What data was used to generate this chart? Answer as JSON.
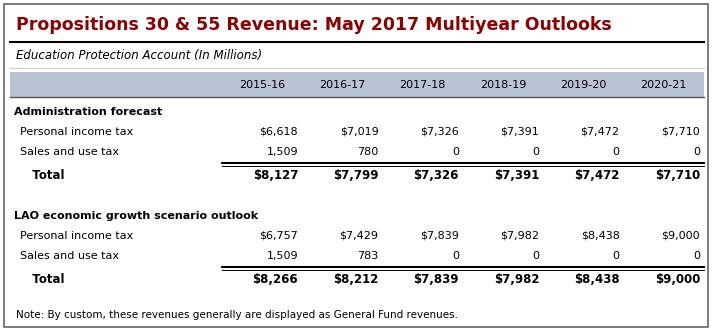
{
  "title": "Propositions 30 & 55 Revenue: May 2017 Multiyear Outlooks",
  "subtitle": "Education Protection Account (In Millions)",
  "columns": [
    "",
    "2015-16",
    "2016-17",
    "2017-18",
    "2018-19",
    "2019-20",
    "2020-21"
  ],
  "header_bg": "#b8c4d4",
  "title_color": "#8B0000",
  "sections": [
    {
      "header": "Administration forecast",
      "rows": [
        {
          "label": "Personal income tax",
          "values": [
            "$6,618",
            "$7,019",
            "$7,326",
            "$7,391",
            "$7,472",
            "$7,710"
          ]
        },
        {
          "label": "Sales and use tax",
          "values": [
            "1,509",
            "780",
            "0",
            "0",
            "0",
            "0"
          ]
        }
      ],
      "total": {
        "label": "Total",
        "values": [
          "$8,127",
          "$7,799",
          "$7,326",
          "$7,391",
          "$7,472",
          "$7,710"
        ]
      }
    },
    {
      "header": "LAO economic growth scenario outlook",
      "rows": [
        {
          "label": "Personal income tax",
          "values": [
            "$6,757",
            "$7,429",
            "$7,839",
            "$7,982",
            "$8,438",
            "$9,000"
          ]
        },
        {
          "label": "Sales and use tax",
          "values": [
            "1,509",
            "783",
            "0",
            "0",
            "0",
            "0"
          ]
        }
      ],
      "total": {
        "label": "Total",
        "values": [
          "$8,266",
          "$8,212",
          "$7,839",
          "$7,982",
          "$8,438",
          "$9,000"
        ]
      }
    }
  ],
  "note": "Note: By custom, these revenues generally are displayed as General Fund revenues.",
  "figsize": [
    7.12,
    3.31
  ],
  "dpi": 100
}
